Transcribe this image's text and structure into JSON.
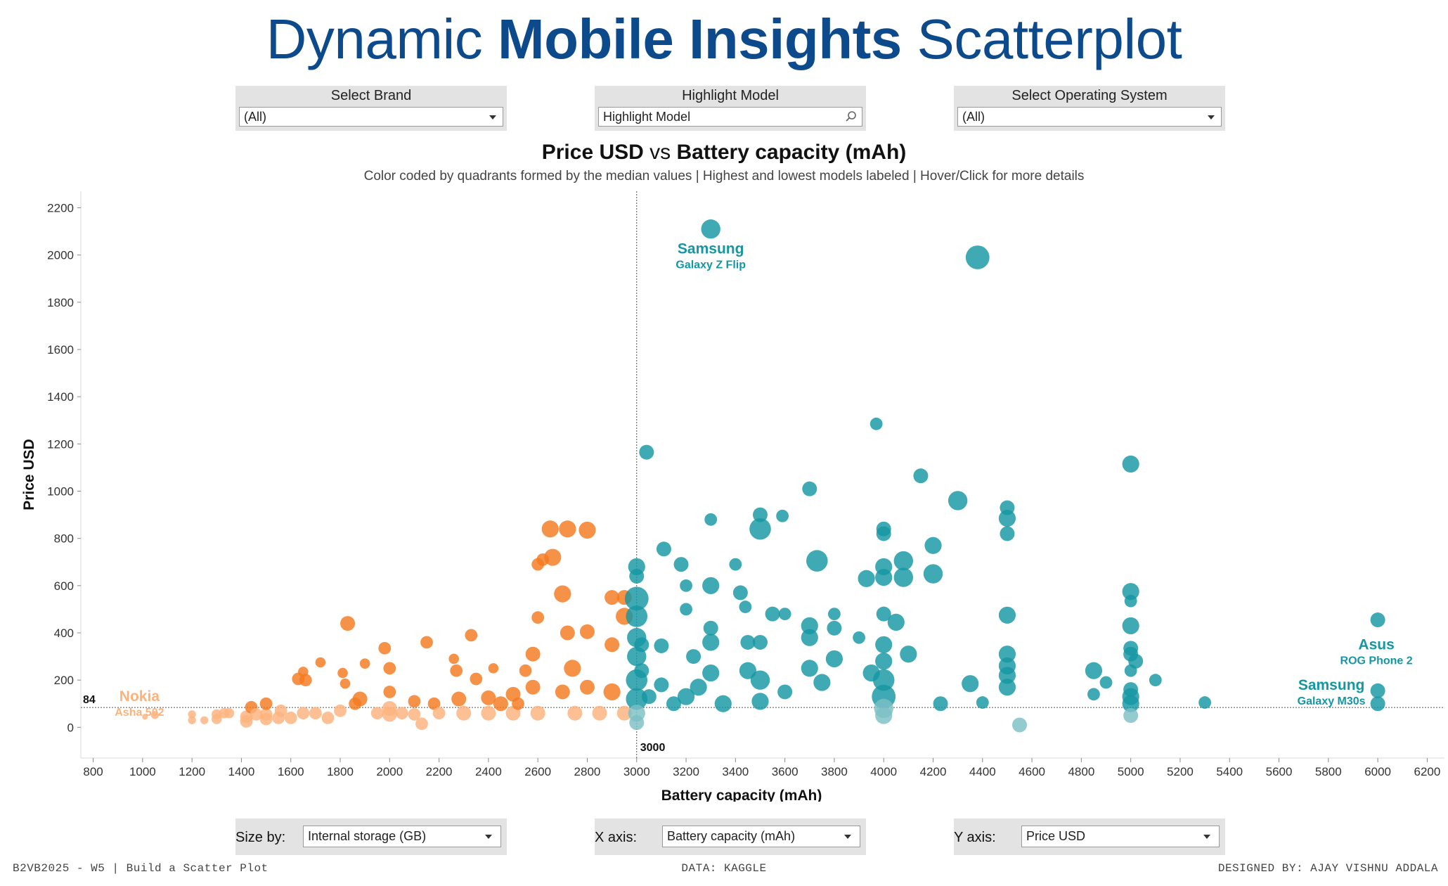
{
  "header": {
    "title_part1": "Dynamic",
    "title_part2": "Mobile Insights",
    "title_part3": "Scatterplot"
  },
  "filters": {
    "brand": {
      "label": "Select Brand",
      "value": "(All)"
    },
    "model": {
      "label": "Highlight Model",
      "placeholder": "Highlight Model"
    },
    "os": {
      "label": "Select Operating System",
      "value": "(All)"
    }
  },
  "controls": {
    "size_by": {
      "label": "Size by:",
      "value": "Internal storage (GB)"
    },
    "x_axis": {
      "label": "X axis:",
      "value": "Battery capacity (mAh)"
    },
    "y_axis": {
      "label": "Y axis:",
      "value": "Price USD"
    }
  },
  "footer": {
    "left": "B2VB2025 - W5 | Build a Scatter Plot",
    "center": "DATA: KAGGLE",
    "right": "DESIGNED BY: AJAY VISHNU ADDALA"
  },
  "colors": {
    "title": "#0c4a8c",
    "orange_dark": "#f47a20",
    "orange_light": "#fdb27c",
    "teal_dark": "#1597a3",
    "teal_light": "#7cc0c4"
  },
  "chart_data": {
    "type": "scatter",
    "title_y": "Price USD",
    "title_vs": "vs",
    "title_x": "Battery capacity (mAh)",
    "subtitle": "Color coded by quadrants formed by the median values  |  Highest and lowest models labeled  |  Hover/Click for more details",
    "xlabel": "Battery capacity (mAh)",
    "ylabel": "Price USD",
    "xlim": [
      750,
      6270
    ],
    "ylim": [
      -130,
      2270
    ],
    "xticks": [
      800,
      1000,
      1200,
      1400,
      1600,
      1800,
      2000,
      2200,
      2400,
      2600,
      2800,
      3000,
      3200,
      3400,
      3600,
      3800,
      4000,
      4200,
      4400,
      4600,
      4800,
      5000,
      5200,
      5400,
      5600,
      5800,
      6000,
      6200
    ],
    "yticks": [
      0,
      200,
      400,
      600,
      800,
      1000,
      1200,
      1400,
      1600,
      1800,
      2000,
      2200
    ],
    "median_x": 3000,
    "median_y": 84,
    "median_x_label": "3000",
    "median_y_label": "84",
    "size_scale": "Internal storage (GB)",
    "quadrant_colors": {
      "low_x_high_y": "#f47a20",
      "low_x_low_y": "#fdb27c",
      "high_x_high_y": "#1597a3",
      "high_x_low_y": "#7cc0c4"
    },
    "annotations": [
      {
        "brand": "Samsung",
        "model": "Galaxy Z Flip",
        "x": 3300,
        "y": 2110
      },
      {
        "brand": "Asus",
        "model": "ROG Phone 2",
        "x": 6000,
        "y": 455
      },
      {
        "brand": "Samsung",
        "model": "Galaxy M30s",
        "x": 6000,
        "y": 100
      },
      {
        "brand": "Nokia",
        "model": "Asha 502",
        "x": 1010,
        "y": 45
      }
    ],
    "points": [
      {
        "x": 1010,
        "y": 45,
        "s": 1
      },
      {
        "x": 1050,
        "y": 52,
        "s": 2
      },
      {
        "x": 1200,
        "y": 30,
        "s": 2
      },
      {
        "x": 1200,
        "y": 55,
        "s": 2
      },
      {
        "x": 1250,
        "y": 30,
        "s": 2
      },
      {
        "x": 1300,
        "y": 35,
        "s": 3
      },
      {
        "x": 1300,
        "y": 55,
        "s": 3
      },
      {
        "x": 1330,
        "y": 60,
        "s": 3
      },
      {
        "x": 1350,
        "y": 60,
        "s": 3
      },
      {
        "x": 1420,
        "y": 45,
        "s": 4
      },
      {
        "x": 1420,
        "y": 25,
        "s": 4
      },
      {
        "x": 1440,
        "y": 85,
        "s": 4
      },
      {
        "x": 1460,
        "y": 55,
        "s": 4
      },
      {
        "x": 1500,
        "y": 55,
        "s": 4
      },
      {
        "x": 1500,
        "y": 35,
        "s": 4
      },
      {
        "x": 1500,
        "y": 100,
        "s": 4
      },
      {
        "x": 1550,
        "y": 40,
        "s": 4
      },
      {
        "x": 1560,
        "y": 70,
        "s": 4
      },
      {
        "x": 1600,
        "y": 40,
        "s": 4
      },
      {
        "x": 1630,
        "y": 205,
        "s": 4
      },
      {
        "x": 1650,
        "y": 235,
        "s": 3
      },
      {
        "x": 1660,
        "y": 200,
        "s": 4
      },
      {
        "x": 1650,
        "y": 60,
        "s": 4
      },
      {
        "x": 1700,
        "y": 60,
        "s": 4
      },
      {
        "x": 1720,
        "y": 275,
        "s": 3
      },
      {
        "x": 1750,
        "y": 40,
        "s": 4
      },
      {
        "x": 1800,
        "y": 70,
        "s": 4
      },
      {
        "x": 1810,
        "y": 230,
        "s": 3
      },
      {
        "x": 1820,
        "y": 185,
        "s": 3
      },
      {
        "x": 1830,
        "y": 440,
        "s": 5
      },
      {
        "x": 1860,
        "y": 100,
        "s": 4
      },
      {
        "x": 1880,
        "y": 120,
        "s": 5
      },
      {
        "x": 1900,
        "y": 270,
        "s": 3
      },
      {
        "x": 1950,
        "y": 60,
        "s": 4
      },
      {
        "x": 1980,
        "y": 335,
        "s": 4
      },
      {
        "x": 2000,
        "y": 250,
        "s": 4
      },
      {
        "x": 2000,
        "y": 150,
        "s": 4
      },
      {
        "x": 2000,
        "y": 80,
        "s": 5
      },
      {
        "x": 2000,
        "y": 55,
        "s": 5
      },
      {
        "x": 2050,
        "y": 60,
        "s": 4
      },
      {
        "x": 2100,
        "y": 110,
        "s": 4
      },
      {
        "x": 2100,
        "y": 55,
        "s": 4
      },
      {
        "x": 2130,
        "y": 15,
        "s": 4
      },
      {
        "x": 2150,
        "y": 360,
        "s": 4
      },
      {
        "x": 2180,
        "y": 100,
        "s": 4
      },
      {
        "x": 2200,
        "y": 60,
        "s": 4
      },
      {
        "x": 2260,
        "y": 290,
        "s": 3
      },
      {
        "x": 2270,
        "y": 240,
        "s": 4
      },
      {
        "x": 2280,
        "y": 120,
        "s": 5
      },
      {
        "x": 2300,
        "y": 60,
        "s": 5
      },
      {
        "x": 2330,
        "y": 390,
        "s": 4
      },
      {
        "x": 2350,
        "y": 205,
        "s": 4
      },
      {
        "x": 2400,
        "y": 125,
        "s": 5
      },
      {
        "x": 2400,
        "y": 60,
        "s": 5
      },
      {
        "x": 2420,
        "y": 250,
        "s": 3
      },
      {
        "x": 2450,
        "y": 100,
        "s": 5
      },
      {
        "x": 2500,
        "y": 60,
        "s": 5
      },
      {
        "x": 2500,
        "y": 140,
        "s": 5
      },
      {
        "x": 2520,
        "y": 100,
        "s": 4
      },
      {
        "x": 2550,
        "y": 240,
        "s": 4
      },
      {
        "x": 2580,
        "y": 310,
        "s": 5
      },
      {
        "x": 2580,
        "y": 170,
        "s": 5
      },
      {
        "x": 2600,
        "y": 465,
        "s": 4
      },
      {
        "x": 2600,
        "y": 60,
        "s": 5
      },
      {
        "x": 2600,
        "y": 690,
        "s": 4
      },
      {
        "x": 2620,
        "y": 710,
        "s": 4
      },
      {
        "x": 2650,
        "y": 840,
        "s": 6
      },
      {
        "x": 2660,
        "y": 720,
        "s": 6
      },
      {
        "x": 2700,
        "y": 565,
        "s": 6
      },
      {
        "x": 2720,
        "y": 840,
        "s": 6
      },
      {
        "x": 2700,
        "y": 150,
        "s": 5
      },
      {
        "x": 2720,
        "y": 400,
        "s": 5
      },
      {
        "x": 2740,
        "y": 250,
        "s": 6
      },
      {
        "x": 2750,
        "y": 60,
        "s": 5
      },
      {
        "x": 2800,
        "y": 835,
        "s": 6
      },
      {
        "x": 2800,
        "y": 405,
        "s": 5
      },
      {
        "x": 2800,
        "y": 170,
        "s": 5
      },
      {
        "x": 2850,
        "y": 60,
        "s": 5
      },
      {
        "x": 2900,
        "y": 550,
        "s": 5
      },
      {
        "x": 2900,
        "y": 350,
        "s": 5
      },
      {
        "x": 2900,
        "y": 150,
        "s": 6
      },
      {
        "x": 2950,
        "y": 470,
        "s": 6
      },
      {
        "x": 2950,
        "y": 550,
        "s": 5
      },
      {
        "x": 2950,
        "y": 60,
        "s": 5
      },
      {
        "x": 3000,
        "y": 680,
        "s": 6
      },
      {
        "x": 3000,
        "y": 640,
        "s": 5
      },
      {
        "x": 3000,
        "y": 545,
        "s": 9
      },
      {
        "x": 3000,
        "y": 470,
        "s": 8
      },
      {
        "x": 3000,
        "y": 380,
        "s": 7
      },
      {
        "x": 3000,
        "y": 300,
        "s": 7
      },
      {
        "x": 3000,
        "y": 200,
        "s": 8
      },
      {
        "x": 3000,
        "y": 120,
        "s": 8
      },
      {
        "x": 3000,
        "y": 60,
        "s": 6
      },
      {
        "x": 3000,
        "y": 20,
        "s": 5
      },
      {
        "x": 3040,
        "y": 1165,
        "s": 5
      },
      {
        "x": 3020,
        "y": 350,
        "s": 5
      },
      {
        "x": 3020,
        "y": 240,
        "s": 5
      },
      {
        "x": 3050,
        "y": 130,
        "s": 5
      },
      {
        "x": 3100,
        "y": 345,
        "s": 5
      },
      {
        "x": 3100,
        "y": 180,
        "s": 5
      },
      {
        "x": 3110,
        "y": 755,
        "s": 5
      },
      {
        "x": 3150,
        "y": 100,
        "s": 5
      },
      {
        "x": 3180,
        "y": 690,
        "s": 5
      },
      {
        "x": 3200,
        "y": 600,
        "s": 4
      },
      {
        "x": 3200,
        "y": 500,
        "s": 4
      },
      {
        "x": 3200,
        "y": 130,
        "s": 6
      },
      {
        "x": 3230,
        "y": 300,
        "s": 5
      },
      {
        "x": 3250,
        "y": 170,
        "s": 6
      },
      {
        "x": 3300,
        "y": 2110,
        "s": 7
      },
      {
        "x": 3300,
        "y": 880,
        "s": 4
      },
      {
        "x": 3300,
        "y": 600,
        "s": 6
      },
      {
        "x": 3300,
        "y": 420,
        "s": 5
      },
      {
        "x": 3300,
        "y": 360,
        "s": 6
      },
      {
        "x": 3300,
        "y": 230,
        "s": 6
      },
      {
        "x": 3350,
        "y": 100,
        "s": 6
      },
      {
        "x": 3400,
        "y": 690,
        "s": 4
      },
      {
        "x": 3420,
        "y": 570,
        "s": 5
      },
      {
        "x": 3440,
        "y": 510,
        "s": 4
      },
      {
        "x": 3450,
        "y": 360,
        "s": 5
      },
      {
        "x": 3450,
        "y": 240,
        "s": 6
      },
      {
        "x": 3500,
        "y": 900,
        "s": 5
      },
      {
        "x": 3500,
        "y": 840,
        "s": 8
      },
      {
        "x": 3500,
        "y": 360,
        "s": 5
      },
      {
        "x": 3500,
        "y": 200,
        "s": 7
      },
      {
        "x": 3500,
        "y": 110,
        "s": 6
      },
      {
        "x": 3550,
        "y": 480,
        "s": 5
      },
      {
        "x": 3590,
        "y": 895,
        "s": 4
      },
      {
        "x": 3600,
        "y": 480,
        "s": 4
      },
      {
        "x": 3600,
        "y": 150,
        "s": 5
      },
      {
        "x": 3700,
        "y": 1010,
        "s": 5
      },
      {
        "x": 3700,
        "y": 430,
        "s": 6
      },
      {
        "x": 3700,
        "y": 380,
        "s": 6
      },
      {
        "x": 3700,
        "y": 250,
        "s": 6
      },
      {
        "x": 3730,
        "y": 705,
        "s": 8
      },
      {
        "x": 3750,
        "y": 190,
        "s": 6
      },
      {
        "x": 3800,
        "y": 420,
        "s": 5
      },
      {
        "x": 3800,
        "y": 290,
        "s": 6
      },
      {
        "x": 3800,
        "y": 480,
        "s": 4
      },
      {
        "x": 3900,
        "y": 380,
        "s": 4
      },
      {
        "x": 3930,
        "y": 630,
        "s": 6
      },
      {
        "x": 3950,
        "y": 230,
        "s": 6
      },
      {
        "x": 3970,
        "y": 1285,
        "s": 4
      },
      {
        "x": 4000,
        "y": 840,
        "s": 5
      },
      {
        "x": 4000,
        "y": 820,
        "s": 5
      },
      {
        "x": 4000,
        "y": 680,
        "s": 6
      },
      {
        "x": 4000,
        "y": 635,
        "s": 6
      },
      {
        "x": 4000,
        "y": 480,
        "s": 5
      },
      {
        "x": 4000,
        "y": 350,
        "s": 6
      },
      {
        "x": 4000,
        "y": 280,
        "s": 6
      },
      {
        "x": 4000,
        "y": 200,
        "s": 8
      },
      {
        "x": 4000,
        "y": 130,
        "s": 9
      },
      {
        "x": 4000,
        "y": 80,
        "s": 7
      },
      {
        "x": 4000,
        "y": 50,
        "s": 6
      },
      {
        "x": 4050,
        "y": 445,
        "s": 6
      },
      {
        "x": 4080,
        "y": 705,
        "s": 7
      },
      {
        "x": 4080,
        "y": 635,
        "s": 7
      },
      {
        "x": 4100,
        "y": 310,
        "s": 6
      },
      {
        "x": 4150,
        "y": 1065,
        "s": 5
      },
      {
        "x": 4200,
        "y": 770,
        "s": 6
      },
      {
        "x": 4200,
        "y": 650,
        "s": 7
      },
      {
        "x": 4230,
        "y": 100,
        "s": 5
      },
      {
        "x": 4300,
        "y": 960,
        "s": 7
      },
      {
        "x": 4350,
        "y": 185,
        "s": 6
      },
      {
        "x": 4380,
        "y": 1990,
        "s": 9
      },
      {
        "x": 4400,
        "y": 105,
        "s": 4
      },
      {
        "x": 4500,
        "y": 930,
        "s": 5
      },
      {
        "x": 4500,
        "y": 885,
        "s": 6
      },
      {
        "x": 4500,
        "y": 820,
        "s": 5
      },
      {
        "x": 4500,
        "y": 475,
        "s": 6
      },
      {
        "x": 4500,
        "y": 310,
        "s": 6
      },
      {
        "x": 4500,
        "y": 260,
        "s": 6
      },
      {
        "x": 4500,
        "y": 220,
        "s": 6
      },
      {
        "x": 4500,
        "y": 170,
        "s": 6
      },
      {
        "x": 4550,
        "y": 10,
        "s": 5
      },
      {
        "x": 4850,
        "y": 240,
        "s": 6
      },
      {
        "x": 4850,
        "y": 140,
        "s": 4
      },
      {
        "x": 4900,
        "y": 190,
        "s": 4
      },
      {
        "x": 5000,
        "y": 1115,
        "s": 6
      },
      {
        "x": 5000,
        "y": 575,
        "s": 6
      },
      {
        "x": 5000,
        "y": 535,
        "s": 4
      },
      {
        "x": 5000,
        "y": 430,
        "s": 6
      },
      {
        "x": 5000,
        "y": 335,
        "s": 5
      },
      {
        "x": 5000,
        "y": 310,
        "s": 5
      },
      {
        "x": 5000,
        "y": 240,
        "s": 4
      },
      {
        "x": 5000,
        "y": 160,
        "s": 5
      },
      {
        "x": 5000,
        "y": 130,
        "s": 6
      },
      {
        "x": 5000,
        "y": 100,
        "s": 6
      },
      {
        "x": 5000,
        "y": 50,
        "s": 5
      },
      {
        "x": 5020,
        "y": 280,
        "s": 5
      },
      {
        "x": 5100,
        "y": 200,
        "s": 4
      },
      {
        "x": 5300,
        "y": 105,
        "s": 4
      },
      {
        "x": 6000,
        "y": 455,
        "s": 5
      },
      {
        "x": 6000,
        "y": 155,
        "s": 5
      },
      {
        "x": 6000,
        "y": 100,
        "s": 5
      }
    ]
  }
}
